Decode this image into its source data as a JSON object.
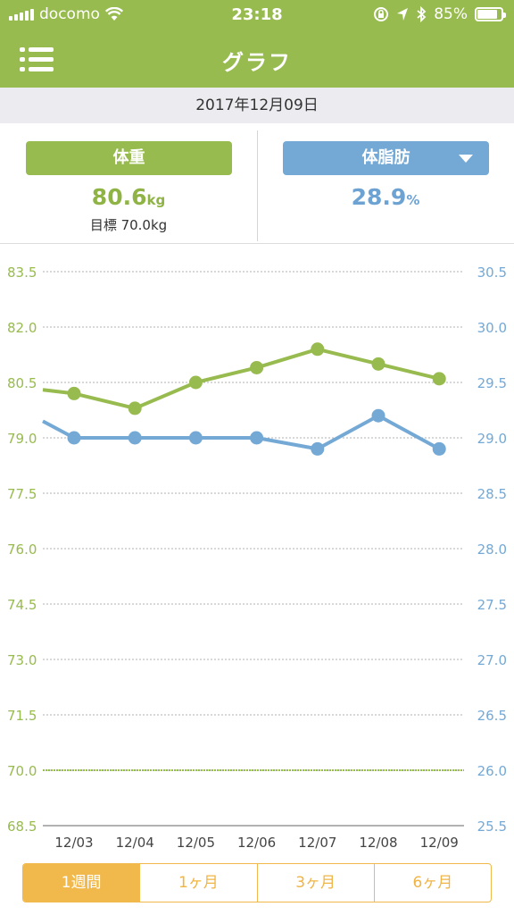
{
  "status_bar": {
    "carrier": "docomo",
    "time": "23:18",
    "battery": "85%",
    "battery_level": 0.85,
    "icons": [
      "signal-icon",
      "wifi-icon",
      "orientation-lock-icon",
      "location-icon",
      "bluetooth-icon",
      "battery-icon"
    ]
  },
  "nav": {
    "title": "グラフ",
    "menu_icon": "list-menu-icon"
  },
  "date": "2017年12月09日",
  "weight_card": {
    "button_label": "体重",
    "value": "80.6",
    "unit": "kg",
    "goal": "目標 70.0kg"
  },
  "fat_card": {
    "button_label": "体脂肪",
    "value": "28.9",
    "unit": "%",
    "dropdown_icon": "caret-down-icon"
  },
  "colors": {
    "weight": "#98bb4f",
    "fat": "#74a9d6",
    "period_accent": "#f1b94b",
    "grid": "#b0b0b0"
  },
  "chart_data": {
    "type": "line",
    "categories": [
      "12/03",
      "12/04",
      "12/05",
      "12/06",
      "12/07",
      "12/08",
      "12/09"
    ],
    "series": [
      {
        "name": "体重",
        "axis": "left",
        "values": [
          80.2,
          79.8,
          80.5,
          80.9,
          81.4,
          81.0,
          80.6
        ],
        "carry_in": 80.3
      },
      {
        "name": "体脂肪",
        "axis": "right",
        "values": [
          29.0,
          29.0,
          29.0,
          29.0,
          28.9,
          29.2,
          28.9
        ],
        "carry_in": 29.15
      }
    ],
    "left_axis": {
      "ticks": [
        "83.5",
        "82.0",
        "80.5",
        "79.0",
        "77.5",
        "76.0",
        "74.5",
        "73.0",
        "71.5",
        "70.0",
        "68.5"
      ],
      "ylim": [
        68.5,
        83.5
      ]
    },
    "right_axis": {
      "ticks": [
        "30.5",
        "30.0",
        "29.5",
        "29.0",
        "28.5",
        "28.0",
        "27.5",
        "27.0",
        "26.5",
        "26.0",
        "25.5"
      ],
      "ylim": [
        25.5,
        30.5
      ]
    },
    "goal_line": 70.0,
    "grid": true
  },
  "periods": [
    {
      "label": "1週間",
      "active": true
    },
    {
      "label": "1ヶ月",
      "active": false
    },
    {
      "label": "3ヶ月",
      "active": false
    },
    {
      "label": "6ヶ月",
      "active": false
    }
  ]
}
